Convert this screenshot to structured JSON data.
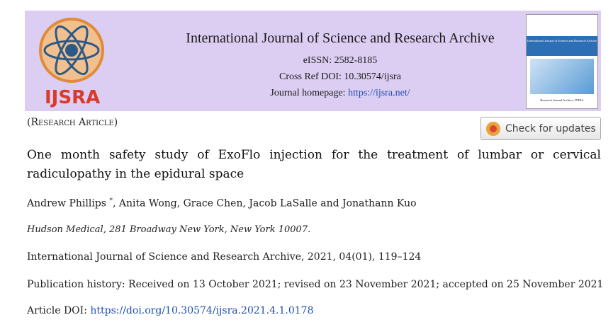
{
  "header": {
    "logo_text": "IJSRA",
    "journal_title": "International Journal of Science and Research Archive",
    "eissn": "eISSN: 2582-8185",
    "crossref": "Cross Ref DOI: 10.30574/ijsra",
    "homepage_label": "Journal homepage: ",
    "homepage_url": "https://ijsra.net/",
    "cover": {
      "title": "International Journal of Science and Research Archive",
      "footer": "Research Journal Archive, INDIA"
    }
  },
  "article_type": "(Research Article)",
  "check_updates": "Check for updates",
  "title": "One month safety study of ExoFlo injection for the treatment of lumbar or cervical radiculopathy in the epidural space",
  "authors": {
    "first": "Andrew Phillips",
    "mark": "*",
    "rest": ", Anita Wong, Grace Chen, Jacob LaSalle and Jonathann Kuo"
  },
  "affiliation": "Hudson Medical, 281 Broadway New York, New York 10007.",
  "citation": "International Journal of Science and Research Archive, 2021, 04(01), 119–124",
  "history": "Publication history: Received on 13 October 2021; revised on 23 November 2021; accepted on 25 November 2021",
  "doi": {
    "label": "Article DOI: ",
    "url": "https://doi.org/10.30574/ijsra.2021.4.1.0178"
  }
}
